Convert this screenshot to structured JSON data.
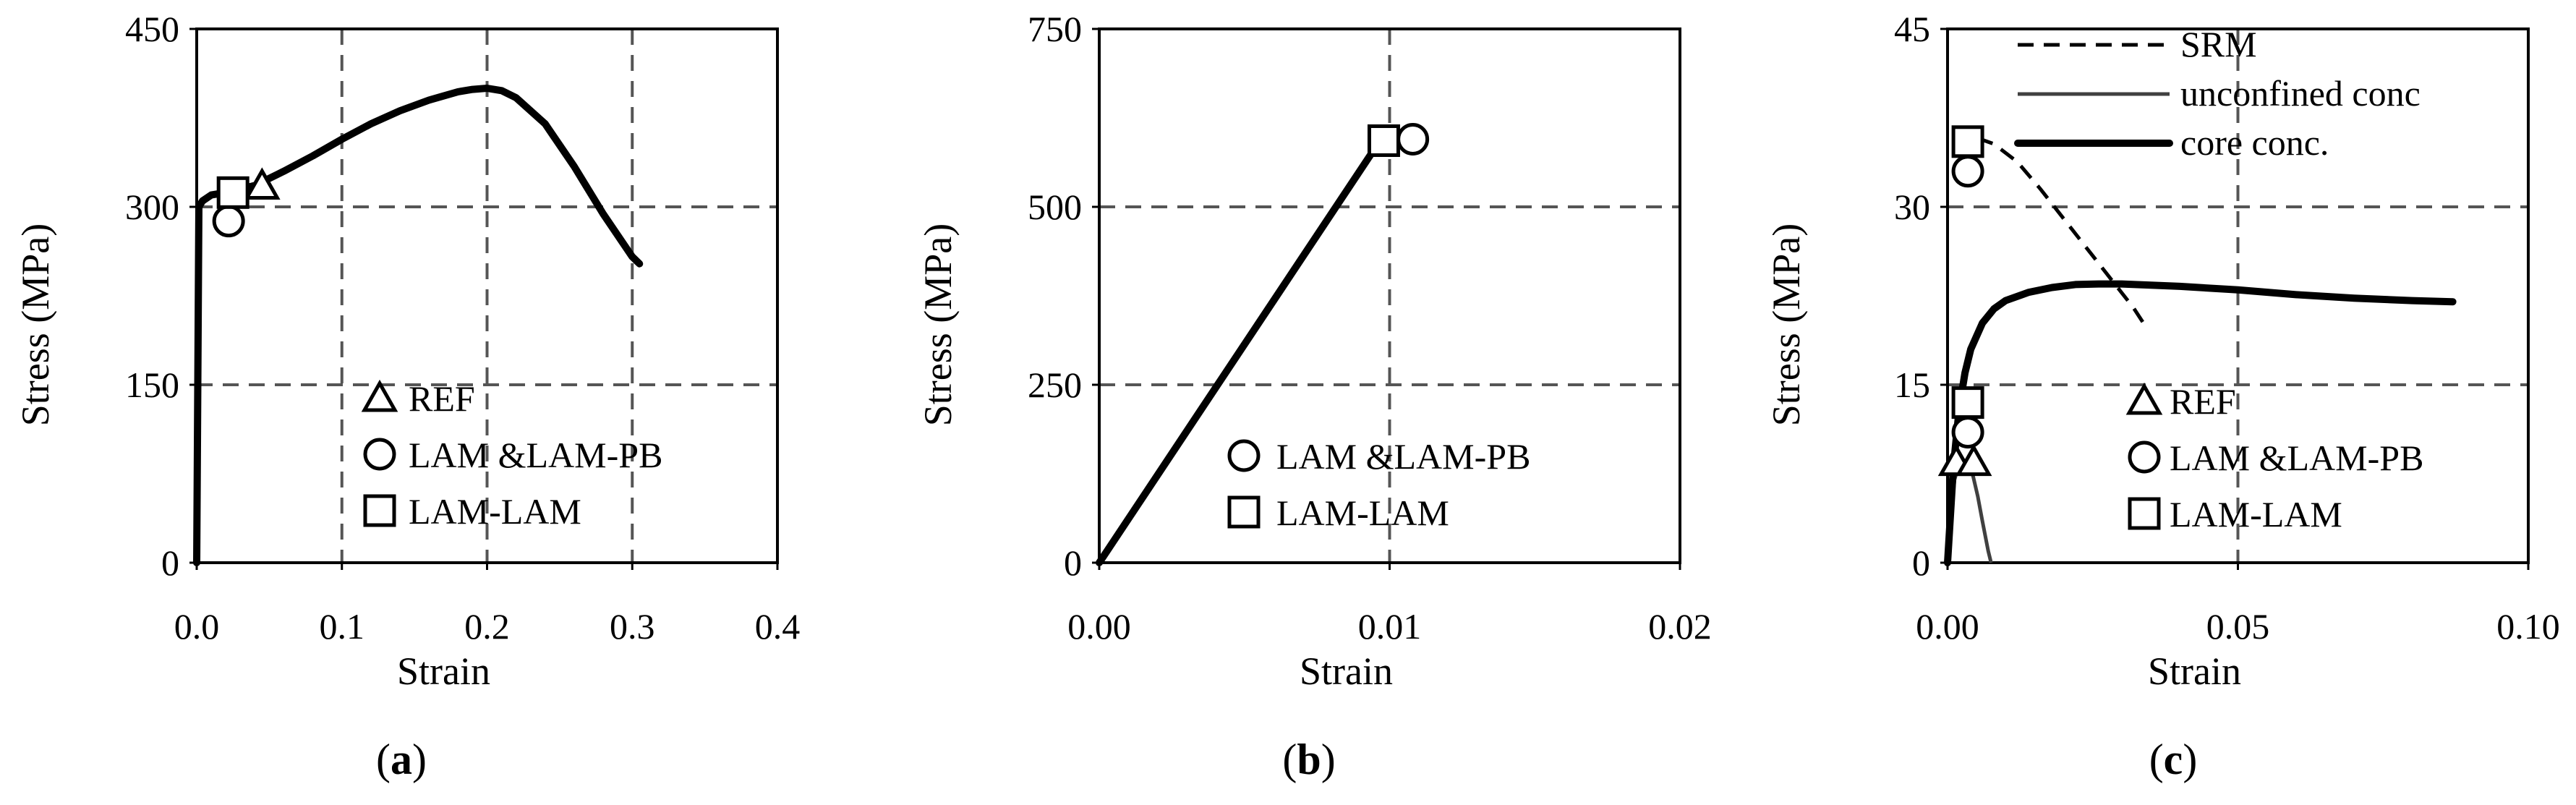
{
  "chart_data": [
    {
      "type": "line",
      "caption": "a",
      "xlabel": "Strain",
      "ylabel": "Stress (MPa)",
      "xlim": [
        0.0,
        0.4
      ],
      "ylim": [
        0,
        450
      ],
      "xticks": [
        "0.0",
        "0.1",
        "0.2",
        "0.3",
        "0.4"
      ],
      "yticks": [
        "0",
        "150",
        "300",
        "450"
      ],
      "grid": true,
      "series": [
        {
          "name": "",
          "style": "solid-thick",
          "x": [
            0.0,
            0.0015,
            0.004,
            0.01,
            0.02,
            0.04,
            0.06,
            0.08,
            0.1,
            0.12,
            0.14,
            0.16,
            0.18,
            0.19,
            0.2,
            0.21,
            0.22,
            0.24,
            0.26,
            0.28,
            0.3,
            0.305
          ],
          "y": [
            0,
            300,
            305,
            310,
            312,
            318,
            330,
            343,
            357,
            370,
            381,
            390,
            397,
            399,
            400,
            398,
            392,
            370,
            334,
            294,
            258,
            252
          ]
        }
      ],
      "markers": [
        {
          "shape": "triangle",
          "x": 0.045,
          "y": 318
        },
        {
          "shape": "circle",
          "x": 0.022,
          "y": 288
        },
        {
          "shape": "square",
          "x": 0.025,
          "y": 312
        }
      ],
      "legend": {
        "position": "bottom-right",
        "entries": [
          {
            "shape": "triangle",
            "label": "REF"
          },
          {
            "shape": "circle",
            "label": "LAM &LAM-PB"
          },
          {
            "shape": "square",
            "label": "LAM-LAM"
          }
        ]
      }
    },
    {
      "type": "line",
      "caption": "b",
      "xlabel": "Strain",
      "ylabel": "Stress (MPa)",
      "xlim": [
        0.0,
        0.02
      ],
      "ylim": [
        0,
        750
      ],
      "xticks": [
        "0.00",
        "0.01",
        "0.02"
      ],
      "yticks": [
        "0",
        "250",
        "500",
        "750"
      ],
      "grid": true,
      "series": [
        {
          "name": "",
          "style": "solid-thick",
          "x": [
            0.0,
            0.0097
          ],
          "y": [
            0,
            595
          ]
        }
      ],
      "markers": [
        {
          "shape": "circle",
          "x": 0.0108,
          "y": 595
        },
        {
          "shape": "square",
          "x": 0.0098,
          "y": 593
        }
      ],
      "legend": {
        "position": "bottom-right",
        "entries": [
          {
            "shape": "circle",
            "label": "LAM &LAM-PB"
          },
          {
            "shape": "square",
            "label": "LAM-LAM"
          }
        ]
      }
    },
    {
      "type": "line",
      "caption": "c",
      "xlabel": "Strain",
      "ylabel": "Stress (MPa)",
      "xlim": [
        0.0,
        0.1
      ],
      "ylim": [
        0,
        45
      ],
      "xticks": [
        "0.00",
        "0.05",
        "0.10"
      ],
      "yticks": [
        "0",
        "15",
        "30",
        "45"
      ],
      "grid": true,
      "series": [
        {
          "name": "SRM",
          "style": "dashed",
          "x": [
            0.0015,
            0.004,
            0.008,
            0.012,
            0.016,
            0.02,
            0.024,
            0.028,
            0.032,
            0.034
          ],
          "y": [
            35,
            36,
            35.3,
            33.8,
            31.5,
            29,
            26.5,
            24,
            21.5,
            20
          ]
        },
        {
          "name": "unconfined conc",
          "style": "solid-thin",
          "x": [
            0.0,
            0.0006,
            0.0012,
            0.002,
            0.0028,
            0.0036,
            0.0044,
            0.0052,
            0.006,
            0.007,
            0.0075
          ],
          "y": [
            0,
            4,
            7,
            8.3,
            8.6,
            8.3,
            7.3,
            5.6,
            3.5,
            1.0,
            0.0
          ]
        },
        {
          "name": "core conc.",
          "style": "solid-thick",
          "x": [
            0.0,
            0.001,
            0.002,
            0.003,
            0.004,
            0.006,
            0.008,
            0.01,
            0.014,
            0.018,
            0.022,
            0.026,
            0.03,
            0.04,
            0.05,
            0.06,
            0.07,
            0.08,
            0.087
          ],
          "y": [
            0,
            8,
            13,
            16,
            18,
            20.2,
            21.4,
            22.1,
            22.8,
            23.2,
            23.45,
            23.5,
            23.5,
            23.3,
            23.0,
            22.6,
            22.3,
            22.1,
            22.0
          ]
        }
      ],
      "markers": [
        {
          "shape": "triangle",
          "x": 0.0015,
          "y": 8.5
        },
        {
          "shape": "triangle",
          "x": 0.0045,
          "y": 8.5
        },
        {
          "shape": "circle",
          "x": 0.0035,
          "y": 11
        },
        {
          "shape": "circle",
          "x": 0.0035,
          "y": 33
        },
        {
          "shape": "square",
          "x": 0.0035,
          "y": 13.5
        },
        {
          "shape": "square",
          "x": 0.0035,
          "y": 35.5
        }
      ],
      "legend": {
        "position": "bottom-right",
        "entries": [
          {
            "shape": "triangle",
            "label": "REF"
          },
          {
            "shape": "circle",
            "label": "LAM &LAM-PB"
          },
          {
            "shape": "square",
            "label": "LAM-LAM"
          }
        ]
      },
      "line_legend": {
        "position": "top-right",
        "entries": [
          {
            "style": "dashed",
            "label": "SRM"
          },
          {
            "style": "solid-thin",
            "label": "unconfined conc"
          },
          {
            "style": "solid-thick",
            "label": "core conc."
          }
        ]
      }
    }
  ]
}
